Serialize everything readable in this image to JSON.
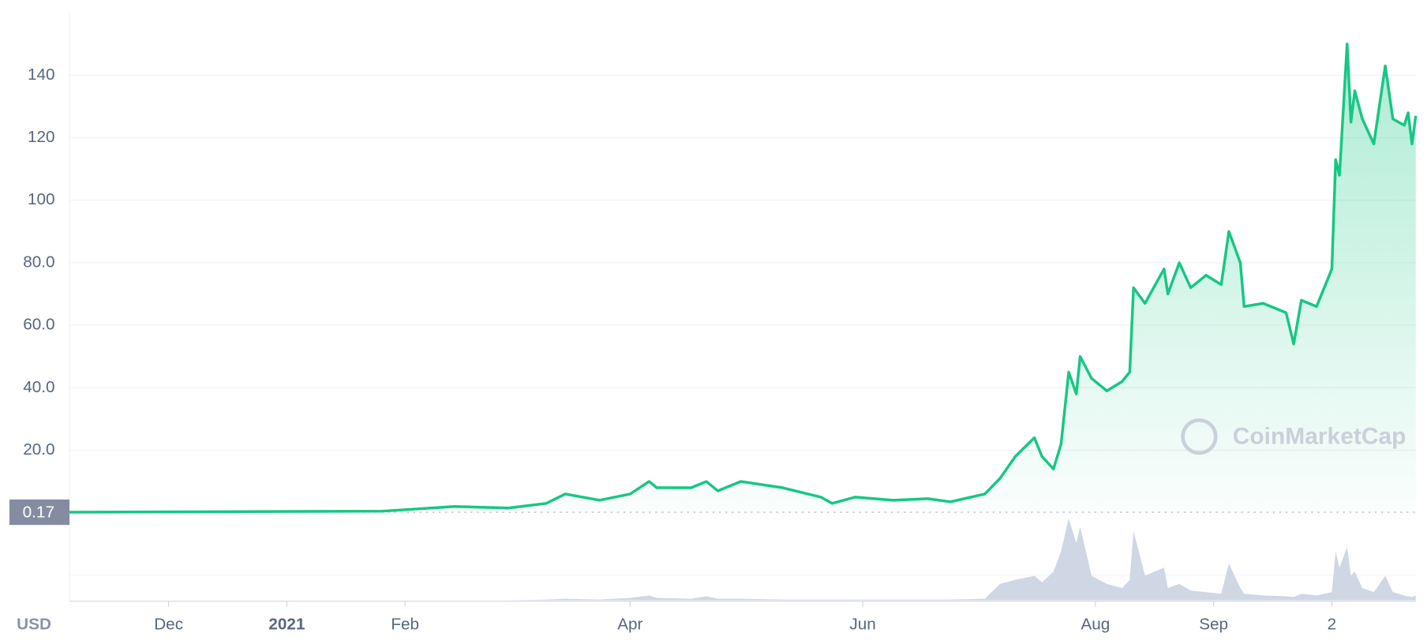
{
  "chart_data": {
    "type": "line",
    "currency": "USD",
    "watermark": "CoinMarketCap",
    "start_price": 0.17,
    "x": [
      0,
      30,
      82,
      101,
      115,
      125,
      130,
      139,
      147,
      152,
      154,
      163,
      167,
      170,
      176,
      187,
      197,
      200,
      206,
      216,
      225,
      231,
      240,
      244,
      248,
      253,
      255,
      258,
      260,
      262,
      264,
      265,
      268,
      272,
      276,
      278,
      279,
      282,
      287,
      288,
      291,
      294,
      298,
      302,
      304,
      307,
      308,
      313,
      319,
      321,
      323,
      327,
      331,
      332,
      333,
      335,
      336,
      337,
      339,
      342,
      345,
      347,
      350,
      351,
      352,
      353
    ],
    "series": [
      {
        "name": "Price",
        "color": "#16c784",
        "values": [
          0.17,
          0.3,
          0.5,
          2,
          1.5,
          3,
          6,
          4,
          6,
          10,
          8,
          8,
          10,
          7,
          10,
          8,
          5,
          3,
          5,
          4,
          4.5,
          3.5,
          6,
          11,
          18,
          24,
          18,
          14,
          22,
          45,
          38,
          50,
          43,
          39,
          42,
          45,
          72,
          67,
          78,
          70,
          80,
          72,
          76,
          73,
          90,
          80,
          66,
          67,
          64,
          54,
          68,
          66,
          78,
          113,
          108,
          150,
          125,
          135,
          126,
          118,
          143,
          126,
          124,
          128,
          118,
          127
        ]
      },
      {
        "name": "Volume",
        "color": "#cfd6e4",
        "values": [
          0,
          0,
          0,
          0,
          0,
          1,
          2,
          1,
          3,
          6,
          3,
          2,
          5,
          2,
          2,
          1,
          1,
          1,
          1,
          1,
          1,
          1,
          2,
          20,
          25,
          30,
          22,
          35,
          60,
          100,
          70,
          90,
          30,
          20,
          15,
          25,
          85,
          30,
          40,
          15,
          20,
          12,
          10,
          8,
          45,
          15,
          8,
          6,
          5,
          4,
          8,
          6,
          10,
          60,
          40,
          65,
          30,
          35,
          15,
          10,
          30,
          10,
          6,
          5,
          4,
          6
        ]
      }
    ],
    "xlim": [
      0,
      353
    ],
    "xticks": [
      {
        "value": 26,
        "label": "Dec"
      },
      {
        "value": 57,
        "label": "2021"
      },
      {
        "value": 88,
        "label": "Feb"
      },
      {
        "value": 147,
        "label": "Apr"
      },
      {
        "value": 208,
        "label": "Jun"
      },
      {
        "value": 269,
        "label": "Aug"
      },
      {
        "value": 300,
        "label": "Sep"
      },
      {
        "value": 331,
        "label": "2"
      }
    ],
    "ylim": [
      0,
      160
    ],
    "yticks": [
      {
        "value": 20,
        "label": "20.0"
      },
      {
        "value": 40,
        "label": "40.0"
      },
      {
        "value": 60,
        "label": "60.0"
      },
      {
        "value": 80,
        "label": "80.0"
      },
      100,
      120,
      140
    ],
    "volume_lim": [
      0,
      100
    ],
    "grid": true
  }
}
